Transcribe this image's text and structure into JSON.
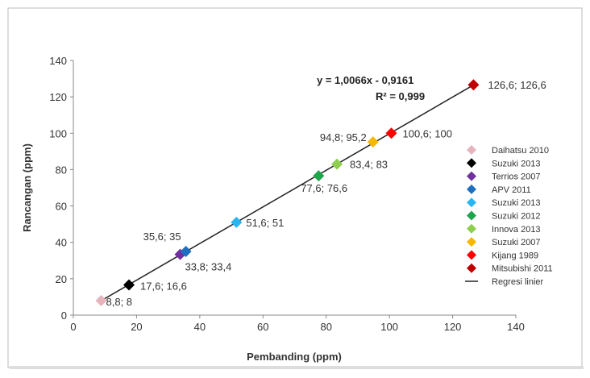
{
  "chart_data": {
    "type": "scatter",
    "xlabel": "Pembanding (ppm)",
    "ylabel": "Rancangan  (ppm)",
    "xlim": [
      0,
      140
    ],
    "ylim": [
      0,
      140
    ],
    "xticks": [
      "0",
      "20",
      "40",
      "60",
      "80",
      "100",
      "120",
      "140"
    ],
    "yticks": [
      "0",
      "20",
      "40",
      "60",
      "80",
      "100",
      "120",
      "140"
    ],
    "grid": false,
    "legend_position": "right",
    "series": [
      {
        "name": "Daihatsu 2010",
        "color": "#e8b4bc",
        "x": 8.8,
        "y": 8,
        "label": "8,8; 8"
      },
      {
        "name": "Suzuki 2013",
        "color": "#000000",
        "x": 17.6,
        "y": 16.6,
        "label": "17,6; 16,6"
      },
      {
        "name": "Terrios 2007",
        "color": "#7030a0",
        "x": 33.8,
        "y": 33.4,
        "label": "33,8; 33,4"
      },
      {
        "name": "APV 2011",
        "color": "#1f6fc0",
        "x": 35.6,
        "y": 35,
        "label": "35,6; 35"
      },
      {
        "name": "Suzuki 2013",
        "color": "#29b6f0",
        "x": 51.6,
        "y": 51,
        "label": "51,6; 51"
      },
      {
        "name": "Suzuki 2012",
        "color": "#1ea64b",
        "x": 77.6,
        "y": 76.6,
        "label": "77,6; 76,6"
      },
      {
        "name": "Innova 2013",
        "color": "#8fcf4f",
        "x": 83.4,
        "y": 83,
        "label": "83,4; 83"
      },
      {
        "name": "Suzuki 2007",
        "color": "#f5b800",
        "x": 94.8,
        "y": 95.2,
        "label": "94,8; 95,2"
      },
      {
        "name": "Kijang 1989",
        "color": "#ff0000",
        "x": 100.6,
        "y": 100,
        "label": "100,6; 100"
      },
      {
        "name": "Mitsubishi 2011",
        "color": "#c00000",
        "x": 126.6,
        "y": 126.6,
        "label": "126,6; 126,6"
      }
    ],
    "regression": {
      "name": "Regresi linier",
      "slope": 1.0066,
      "intercept": -0.9161,
      "equation": "y = 1,0066x - 0,9161",
      "r2": "R² = 0,999",
      "color": "#222222"
    }
  }
}
